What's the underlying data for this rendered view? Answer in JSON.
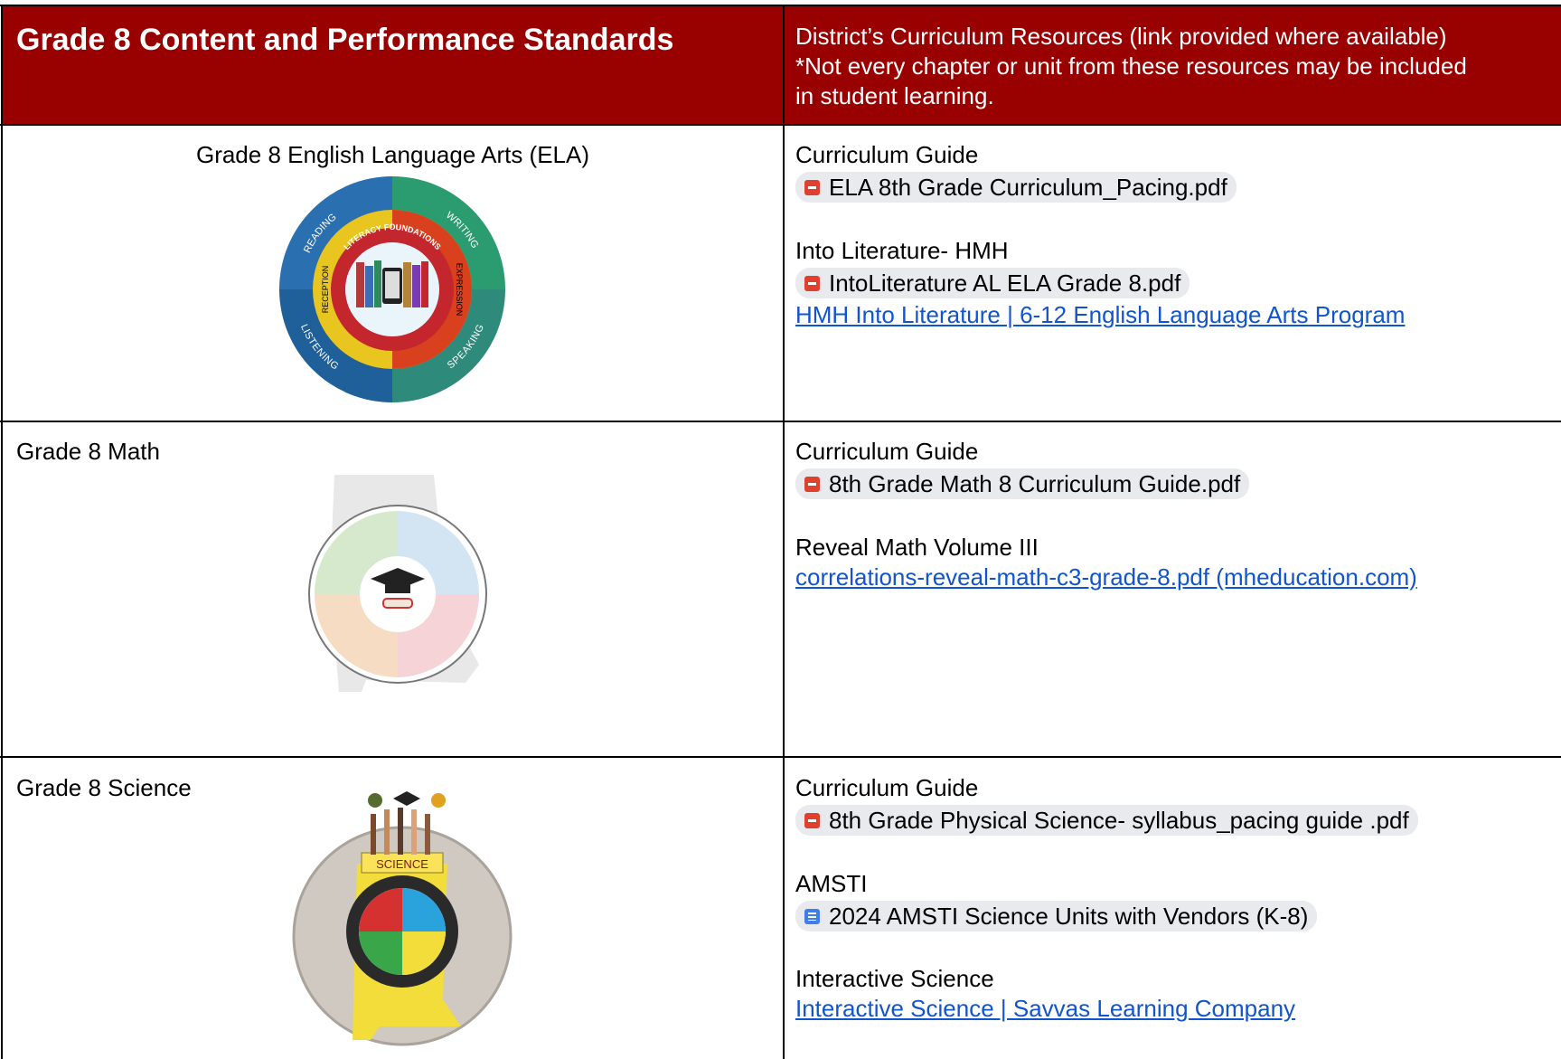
{
  "table": {
    "header": {
      "left": "Grade 8 Content and Performance Standards",
      "right": [
        "District’s Curriculum Resources (link provided where available)",
        "*Not every chapter or unit from these resources may be included in student learning."
      ]
    },
    "rows": [
      {
        "subject": "Grade 8 English Language Arts (ELA)",
        "emblem": [
          "READING",
          "WRITING",
          "LISTENING",
          "SPEAKING",
          "RECEPTION",
          "EXPRESSION",
          "LITERACY FOUNDATIONS"
        ],
        "resources": [
          {
            "heading": "Curriculum Guide",
            "files": [
              "ELA 8th Grade Curriculum_Pacing.pdf"
            ],
            "links": []
          },
          {
            "heading": "Into Literature- HMH",
            "files": [
              "IntoLiterature AL ELA Grade 8.pdf"
            ],
            "links": [
              "HMH Into Literature | 6-12 English Language Arts Program"
            ]
          }
        ]
      },
      {
        "subject": "Grade 8 Math",
        "resources": [
          {
            "heading": "Curriculum Guide",
            "files": [
              "8th Grade Math 8 Curriculum Guide.pdf"
            ],
            "links": []
          },
          {
            "heading": "Reveal Math Volume III",
            "files": [],
            "links": [
              "correlations-reveal-math-c3-grade-8.pdf (mheducation.com)"
            ]
          }
        ]
      },
      {
        "subject": "Grade 8 Science",
        "emblem": [
          "SCIENCE"
        ],
        "resources": [
          {
            "heading": "Curriculum Guide",
            "files": [
              "8th Grade Physical Science- syllabus_pacing guide .pdf"
            ],
            "links": []
          },
          {
            "heading": "AMSTI",
            "docs": [
              "2024 AMSTI Science Units with Vendors (K-8)"
            ],
            "files": [],
            "links": []
          },
          {
            "heading": "Interactive Science",
            "files": [],
            "links": [
              "Interactive Science | Savvas Learning Company"
            ]
          }
        ]
      }
    ]
  }
}
